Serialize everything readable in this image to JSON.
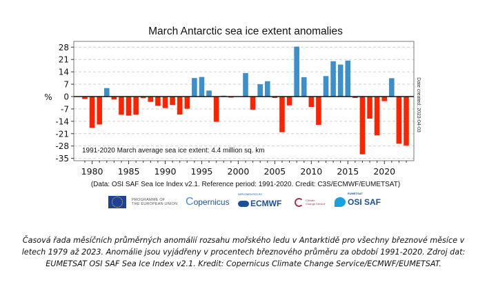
{
  "chart_data": {
    "type": "bar",
    "title": "March Antarctic sea ice extent anomalies",
    "xlabel": "",
    "ylabel": "%",
    "ylim": [
      -35,
      30
    ],
    "yticks": [
      28,
      21,
      14,
      7,
      0,
      -7,
      -14,
      -21,
      -28,
      -35
    ],
    "xticks": [
      1980,
      1985,
      1990,
      1995,
      2000,
      2005,
      2010,
      2015,
      2020
    ],
    "grid": true,
    "annotation": "1991-2020 March average sea ice extent: 4.4 million sq. km",
    "side_note": "Date created: 2023-04-03",
    "source_note": "(Data: OSI SAF Sea Ice Index v2.1.  Reference period: 1991-2020.  Credit: C3S/ECMWF/EUMETSAT)",
    "positive_color": "#3d8fc9",
    "negative_color": "#ff2200",
    "categories": [
      1979,
      1980,
      1981,
      1982,
      1983,
      1984,
      1985,
      1986,
      1987,
      1988,
      1989,
      1990,
      1991,
      1992,
      1993,
      1994,
      1995,
      1996,
      1997,
      1998,
      1999,
      2000,
      2001,
      2002,
      2003,
      2004,
      2005,
      2006,
      2007,
      2008,
      2009,
      2010,
      2011,
      2012,
      2013,
      2014,
      2015,
      2016,
      2017,
      2018,
      2019,
      2020,
      2021,
      2022,
      2023
    ],
    "values": [
      -1.4,
      -17.7,
      -15.8,
      4.8,
      -1.7,
      -10.3,
      -10.8,
      -10.3,
      -0.9,
      -3.0,
      -5.2,
      -6.5,
      -4.8,
      -10.2,
      -6.9,
      10.5,
      11.1,
      3.4,
      -14.3,
      0.5,
      -0.6,
      0.1,
      13.3,
      -7.4,
      7.0,
      8.7,
      -0.8,
      -20.2,
      -5.0,
      28.3,
      11.0,
      -5.9,
      -16.0,
      11.6,
      20.0,
      18.1,
      20.4,
      -0.8,
      -32.7,
      -12.5,
      -22.0,
      -2.6,
      10.4,
      -26.7,
      -27.7
    ]
  },
  "logos": {
    "eu_text_line1": "PROGRAMME OF",
    "eu_text_line2": "THE EUROPEAN UNION",
    "copernicus": "opernicus",
    "copernicus_initial": "C",
    "ecmwf_top": "IMPLEMENTED BY",
    "ecmwf": "ECMWF",
    "c3s_line1": "Climate",
    "c3s_line2": "Change Service",
    "osisaf_top": "EUMETSAT",
    "osisaf": "OSI SAF"
  },
  "caption": "Časová řada měsíčních průměrných anomálií rozsahu mořského ledu v Antarktidě pro všechny březnové měsíce v letech 1979 až 2023. Anomálie jsou vyjádřeny v procentech březnového průměru za období 1991-2020. Zdroj dat: EUMETSAT OSI SAF Sea Ice Index v2.1. Kredit: Copernicus Climate Change Service/ECMWF/EUMETSAT."
}
